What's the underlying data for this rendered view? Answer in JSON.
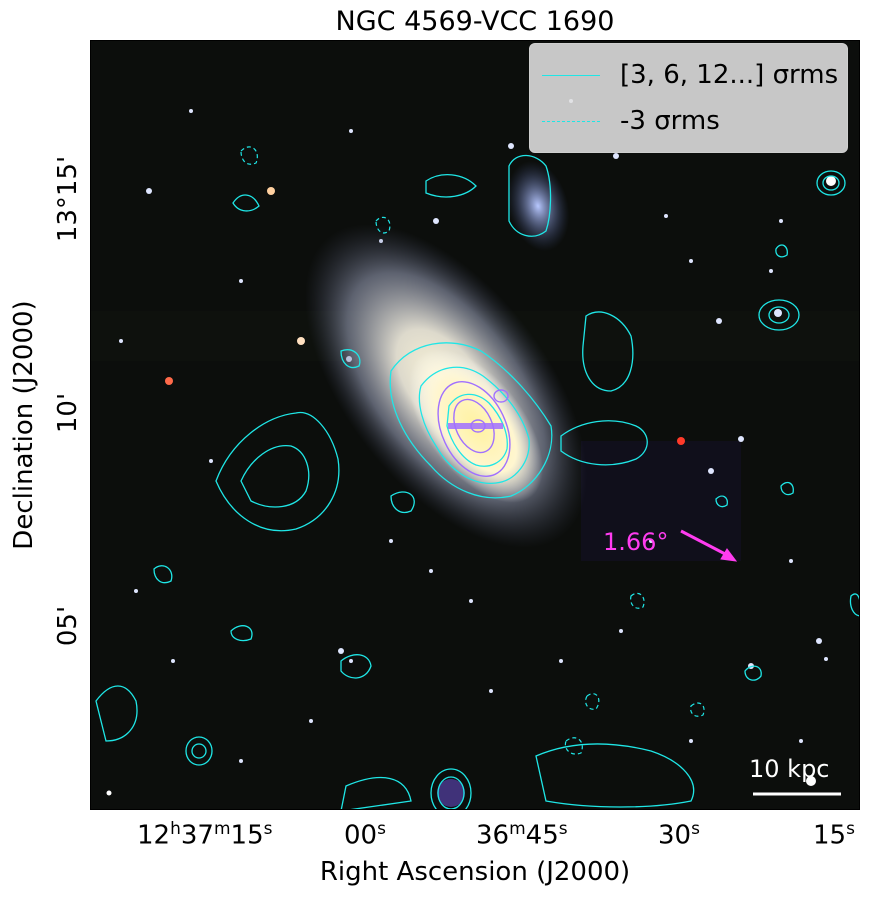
{
  "figure": {
    "title": "NGC 4569-VCC 1690",
    "xlabel": "Right Ascension (J2000)",
    "ylabel": "Declination (J2000)",
    "ra_ticks": [
      "12h37m15s",
      "00s",
      "36m45s",
      "30s",
      "15s"
    ],
    "dec_ticks": [
      "13°15'",
      "10'",
      "05'"
    ],
    "legend": {
      "positive_label": "[3, 6, 12...] σrms",
      "negative_label": "-3 σrms"
    },
    "scale_bar_label": "10 kpc",
    "angle_label": "1.66°",
    "colors": {
      "contour": "#1fe6e6",
      "inner_contour": "#a070ff",
      "arrow": "#ff3cf0",
      "scale_bar": "#ffffff",
      "background": "#0c0e0c"
    }
  }
}
